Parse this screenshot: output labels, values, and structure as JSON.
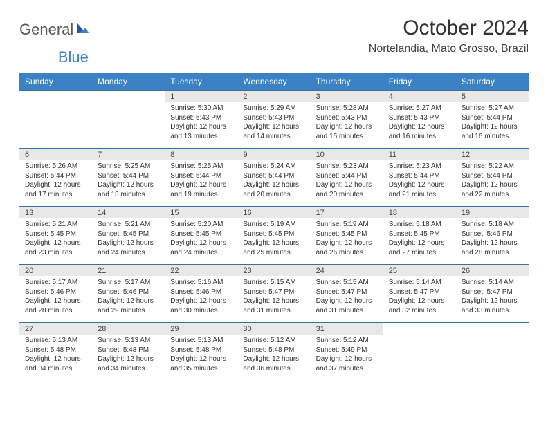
{
  "logo": {
    "text1": "General",
    "text2": "Blue"
  },
  "title": "October 2024",
  "location": "Nortelandia, Mato Grosso, Brazil",
  "header_bg": "#3b82c4",
  "header_fg": "#ffffff",
  "daynum_bg": "#e8e8e8",
  "row_border": "#3b6fa0",
  "day_names": [
    "Sunday",
    "Monday",
    "Tuesday",
    "Wednesday",
    "Thursday",
    "Friday",
    "Saturday"
  ],
  "weeks": [
    [
      null,
      null,
      {
        "n": "1",
        "sr": "5:30 AM",
        "ss": "5:43 PM",
        "dl": "12 hours and 13 minutes."
      },
      {
        "n": "2",
        "sr": "5:29 AM",
        "ss": "5:43 PM",
        "dl": "12 hours and 14 minutes."
      },
      {
        "n": "3",
        "sr": "5:28 AM",
        "ss": "5:43 PM",
        "dl": "12 hours and 15 minutes."
      },
      {
        "n": "4",
        "sr": "5:27 AM",
        "ss": "5:43 PM",
        "dl": "12 hours and 16 minutes."
      },
      {
        "n": "5",
        "sr": "5:27 AM",
        "ss": "5:44 PM",
        "dl": "12 hours and 16 minutes."
      }
    ],
    [
      {
        "n": "6",
        "sr": "5:26 AM",
        "ss": "5:44 PM",
        "dl": "12 hours and 17 minutes."
      },
      {
        "n": "7",
        "sr": "5:25 AM",
        "ss": "5:44 PM",
        "dl": "12 hours and 18 minutes."
      },
      {
        "n": "8",
        "sr": "5:25 AM",
        "ss": "5:44 PM",
        "dl": "12 hours and 19 minutes."
      },
      {
        "n": "9",
        "sr": "5:24 AM",
        "ss": "5:44 PM",
        "dl": "12 hours and 20 minutes."
      },
      {
        "n": "10",
        "sr": "5:23 AM",
        "ss": "5:44 PM",
        "dl": "12 hours and 20 minutes."
      },
      {
        "n": "11",
        "sr": "5:23 AM",
        "ss": "5:44 PM",
        "dl": "12 hours and 21 minutes."
      },
      {
        "n": "12",
        "sr": "5:22 AM",
        "ss": "5:44 PM",
        "dl": "12 hours and 22 minutes."
      }
    ],
    [
      {
        "n": "13",
        "sr": "5:21 AM",
        "ss": "5:45 PM",
        "dl": "12 hours and 23 minutes."
      },
      {
        "n": "14",
        "sr": "5:21 AM",
        "ss": "5:45 PM",
        "dl": "12 hours and 24 minutes."
      },
      {
        "n": "15",
        "sr": "5:20 AM",
        "ss": "5:45 PM",
        "dl": "12 hours and 24 minutes."
      },
      {
        "n": "16",
        "sr": "5:19 AM",
        "ss": "5:45 PM",
        "dl": "12 hours and 25 minutes."
      },
      {
        "n": "17",
        "sr": "5:19 AM",
        "ss": "5:45 PM",
        "dl": "12 hours and 26 minutes."
      },
      {
        "n": "18",
        "sr": "5:18 AM",
        "ss": "5:45 PM",
        "dl": "12 hours and 27 minutes."
      },
      {
        "n": "19",
        "sr": "5:18 AM",
        "ss": "5:46 PM",
        "dl": "12 hours and 28 minutes."
      }
    ],
    [
      {
        "n": "20",
        "sr": "5:17 AM",
        "ss": "5:46 PM",
        "dl": "12 hours and 28 minutes."
      },
      {
        "n": "21",
        "sr": "5:17 AM",
        "ss": "5:46 PM",
        "dl": "12 hours and 29 minutes."
      },
      {
        "n": "22",
        "sr": "5:16 AM",
        "ss": "5:46 PM",
        "dl": "12 hours and 30 minutes."
      },
      {
        "n": "23",
        "sr": "5:15 AM",
        "ss": "5:47 PM",
        "dl": "12 hours and 31 minutes."
      },
      {
        "n": "24",
        "sr": "5:15 AM",
        "ss": "5:47 PM",
        "dl": "12 hours and 31 minutes."
      },
      {
        "n": "25",
        "sr": "5:14 AM",
        "ss": "5:47 PM",
        "dl": "12 hours and 32 minutes."
      },
      {
        "n": "26",
        "sr": "5:14 AM",
        "ss": "5:47 PM",
        "dl": "12 hours and 33 minutes."
      }
    ],
    [
      {
        "n": "27",
        "sr": "5:13 AM",
        "ss": "5:48 PM",
        "dl": "12 hours and 34 minutes."
      },
      {
        "n": "28",
        "sr": "5:13 AM",
        "ss": "5:48 PM",
        "dl": "12 hours and 34 minutes."
      },
      {
        "n": "29",
        "sr": "5:13 AM",
        "ss": "5:48 PM",
        "dl": "12 hours and 35 minutes."
      },
      {
        "n": "30",
        "sr": "5:12 AM",
        "ss": "5:48 PM",
        "dl": "12 hours and 36 minutes."
      },
      {
        "n": "31",
        "sr": "5:12 AM",
        "ss": "5:49 PM",
        "dl": "12 hours and 37 minutes."
      },
      null,
      null
    ]
  ],
  "labels": {
    "sunrise": "Sunrise:",
    "sunset": "Sunset:",
    "daylight": "Daylight:"
  }
}
